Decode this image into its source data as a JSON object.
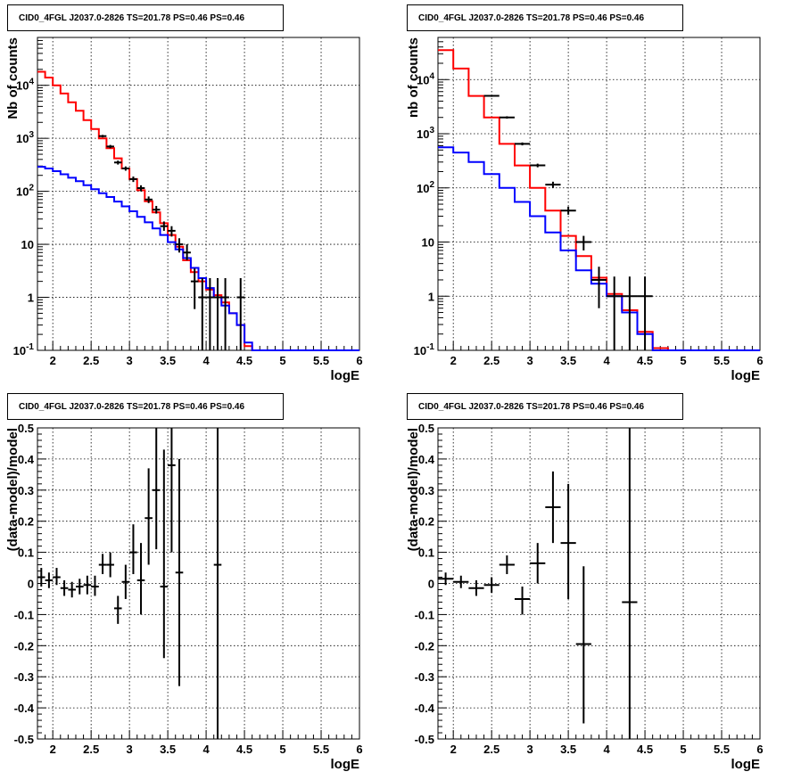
{
  "chart_data": [
    {
      "type": "histogram",
      "title": "CID0_4FGL J2037.0-2826 TS=201.78 PS=0.46 PS=0.46",
      "xlabel": "logE",
      "ylabel": "Nb of counts",
      "xlim": [
        1.8,
        6
      ],
      "ylim": [
        0.1,
        80000
      ],
      "yscale": "log",
      "grid": true,
      "x_ticks": [
        "2",
        "2.5",
        "3",
        "3.5",
        "4",
        "4.5",
        "5",
        "5.5",
        "6"
      ],
      "y_ticks": [
        "10^{-1}",
        "1",
        "10",
        "10^{2}",
        "10^{3}",
        "10^{4}"
      ],
      "bin_edges": [
        1.8,
        1.9,
        2.0,
        2.1,
        2.2,
        2.3,
        2.4,
        2.5,
        2.6,
        2.7,
        2.8,
        2.9,
        3.0,
        3.1,
        3.2,
        3.3,
        3.4,
        3.5,
        3.6,
        3.7,
        3.8,
        3.9,
        4.0,
        4.1,
        4.2,
        4.3,
        4.4,
        4.5,
        4.6,
        4.7,
        4.8,
        4.9,
        5.0,
        5.1,
        5.2,
        5.3,
        5.4,
        5.5,
        5.6,
        5.7,
        5.8,
        5.9,
        6.0
      ],
      "series": [
        {
          "color": "#ff0000",
          "style": "step",
          "values": [
            18000,
            14000,
            10000,
            7000,
            4800,
            3300,
            2200,
            1500,
            1000,
            650,
            420,
            270,
            170,
            105,
            65,
            40,
            25,
            15,
            9,
            5,
            3,
            2,
            1.4,
            1.1,
            0.8,
            0.5,
            0.3,
            0.12,
            0.1,
            0.1,
            0.1,
            0.1,
            0.1,
            0.1,
            0.1,
            0.1,
            0.1,
            0.1,
            0.1,
            0.1,
            0.1,
            0.1
          ]
        },
        {
          "color": "#0000ff",
          "style": "step",
          "values": [
            290,
            270,
            240,
            210,
            180,
            155,
            130,
            110,
            92,
            78,
            64,
            52,
            42,
            33,
            26,
            20,
            15,
            11,
            8,
            5.5,
            3.6,
            2.3,
            1.5,
            1.0,
            0.7,
            0.5,
            0.3,
            0.14,
            0.1,
            0.1,
            0.1,
            0.1,
            0.1,
            0.1,
            0.1,
            0.1,
            0.1,
            0.1,
            0.1,
            0.1,
            0.1,
            0.1
          ]
        },
        {
          "color": "#000000",
          "style": "points",
          "points": [
            {
              "x": 2.65,
              "y": 1100,
              "lo": 1040,
              "hi": 1160
            },
            {
              "x": 2.75,
              "y": 700,
              "lo": 650,
              "hi": 750
            },
            {
              "x": 2.85,
              "y": 350,
              "lo": 320,
              "hi": 380
            },
            {
              "x": 2.95,
              "y": 270,
              "lo": 245,
              "hi": 295
            },
            {
              "x": 3.05,
              "y": 170,
              "lo": 150,
              "hi": 190
            },
            {
              "x": 3.15,
              "y": 115,
              "lo": 100,
              "hi": 130
            },
            {
              "x": 3.25,
              "y": 70,
              "lo": 60,
              "hi": 80
            },
            {
              "x": 3.35,
              "y": 45,
              "lo": 38,
              "hi": 53
            },
            {
              "x": 3.45,
              "y": 22,
              "lo": 18,
              "hi": 27
            },
            {
              "x": 3.55,
              "y": 18,
              "lo": 14,
              "hi": 22
            },
            {
              "x": 3.65,
              "y": 10,
              "lo": 7,
              "hi": 13
            },
            {
              "x": 3.75,
              "y": 7,
              "lo": 5,
              "hi": 10
            },
            {
              "x": 3.85,
              "y": 2,
              "lo": 0.6,
              "hi": 3.5
            },
            {
              "x": 3.95,
              "y": 1,
              "lo": 0.1,
              "hi": 2.3
            },
            {
              "x": 4.05,
              "y": 1,
              "lo": 0.1,
              "hi": 2.3
            },
            {
              "x": 4.15,
              "y": 1,
              "lo": 0.1,
              "hi": 2.3
            },
            {
              "x": 4.25,
              "y": 1,
              "lo": 0.1,
              "hi": 2.3
            },
            {
              "x": 4.45,
              "y": 1,
              "lo": 0.1,
              "hi": 2.3
            }
          ]
        }
      ]
    },
    {
      "type": "histogram",
      "title": "CID0_4FGL J2037.0-2826 TS=201.78 PS=0.46 PS=0.46",
      "xlabel": "logE",
      "ylabel": "nb of counts",
      "xlim": [
        1.8,
        6
      ],
      "ylim": [
        0.1,
        60000
      ],
      "yscale": "log",
      "grid": true,
      "x_ticks": [
        "2",
        "2.5",
        "3",
        "3.5",
        "4",
        "4.5",
        "5",
        "5.5",
        "6"
      ],
      "y_ticks": [
        "10^{-1}",
        "1",
        "10",
        "10^{2}",
        "10^{3}",
        "10^{4}"
      ],
      "bin_edges": [
        1.8,
        2.0,
        2.2,
        2.4,
        2.6,
        2.8,
        3.0,
        3.2,
        3.4,
        3.6,
        3.8,
        4.0,
        4.2,
        4.4,
        4.6,
        4.8,
        5.0,
        5.2,
        5.4,
        5.6,
        5.8,
        6.0
      ],
      "series": [
        {
          "color": "#ff0000",
          "style": "step",
          "values": [
            35000,
            16000,
            5000,
            2000,
            650,
            260,
            100,
            38,
            13,
            5.5,
            2.2,
            1.1,
            0.55,
            0.22,
            0.11,
            0.1,
            0.1,
            0.1,
            0.1,
            0.1,
            0.1
          ]
        },
        {
          "color": "#0000ff",
          "style": "step",
          "values": [
            560,
            450,
            300,
            180,
            100,
            55,
            30,
            15,
            7,
            3,
            1.7,
            1,
            0.5,
            0.2,
            0.1,
            0.1,
            0.1,
            0.1,
            0.1,
            0.1,
            0.1
          ]
        },
        {
          "color": "#000000",
          "style": "points",
          "points": [
            {
              "x": 2.5,
              "y": 5000,
              "lo": 4800,
              "hi": 5200
            },
            {
              "x": 2.7,
              "y": 2000,
              "lo": 1900,
              "hi": 2100
            },
            {
              "x": 2.9,
              "y": 650,
              "lo": 610,
              "hi": 690
            },
            {
              "x": 3.1,
              "y": 260,
              "lo": 240,
              "hi": 280
            },
            {
              "x": 3.3,
              "y": 115,
              "lo": 100,
              "hi": 130
            },
            {
              "x": 3.5,
              "y": 38,
              "lo": 32,
              "hi": 45
            },
            {
              "x": 3.7,
              "y": 10,
              "lo": 7,
              "hi": 13
            },
            {
              "x": 3.9,
              "y": 2,
              "lo": 0.6,
              "hi": 3.5
            },
            {
              "x": 4.1,
              "y": 1,
              "lo": 0.1,
              "hi": 2.3
            },
            {
              "x": 4.3,
              "y": 1,
              "lo": 0.1,
              "hi": 2.3
            },
            {
              "x": 4.5,
              "y": 1,
              "lo": 0.1,
              "hi": 2.3
            }
          ]
        }
      ]
    },
    {
      "type": "scatter",
      "title": "CID0_4FGL J2037.0-2826 TS=201.78 PS=0.46 PS=0.46",
      "xlabel": "logE",
      "ylabel": "(data-model)/model",
      "xlim": [
        1.8,
        6
      ],
      "ylim": [
        -0.5,
        0.5
      ],
      "grid": true,
      "x_ticks": [
        "2",
        "2.5",
        "3",
        "3.5",
        "4",
        "4.5",
        "5",
        "5.5",
        "6"
      ],
      "y_ticks": [
        "-0.5",
        "-0.4",
        "-0.3",
        "-0.2",
        "-0.1",
        "0",
        "0.1",
        "0.2",
        "0.3",
        "0.4",
        "0.5"
      ],
      "series": [
        {
          "color": "#000000",
          "style": "points",
          "xerr": 0.05,
          "points": [
            {
              "x": 1.85,
              "y": 0.02,
              "lo": -0.01,
              "hi": 0.05
            },
            {
              "x": 1.95,
              "y": 0.01,
              "lo": -0.015,
              "hi": 0.035
            },
            {
              "x": 2.05,
              "y": 0.02,
              "lo": -0.005,
              "hi": 0.05
            },
            {
              "x": 2.15,
              "y": -0.015,
              "lo": -0.04,
              "hi": 0.01
            },
            {
              "x": 2.25,
              "y": -0.02,
              "lo": -0.045,
              "hi": 0.005
            },
            {
              "x": 2.35,
              "y": -0.01,
              "lo": -0.035,
              "hi": 0.015
            },
            {
              "x": 2.45,
              "y": -0.005,
              "lo": -0.035,
              "hi": 0.025
            },
            {
              "x": 2.55,
              "y": -0.01,
              "lo": -0.04,
              "hi": 0.025
            },
            {
              "x": 2.65,
              "y": 0.06,
              "lo": 0.03,
              "hi": 0.095
            },
            {
              "x": 2.75,
              "y": 0.06,
              "lo": 0.02,
              "hi": 0.1
            },
            {
              "x": 2.85,
              "y": -0.08,
              "lo": -0.13,
              "hi": -0.04
            },
            {
              "x": 2.95,
              "y": 0.005,
              "lo": -0.05,
              "hi": 0.06
            },
            {
              "x": 3.05,
              "y": 0.1,
              "lo": 0.03,
              "hi": 0.19
            },
            {
              "x": 3.15,
              "y": 0.01,
              "lo": -0.1,
              "hi": 0.13
            },
            {
              "x": 3.25,
              "y": 0.21,
              "lo": 0.06,
              "hi": 0.37
            },
            {
              "x": 3.35,
              "y": 0.3,
              "lo": 0.11,
              "hi": 0.5
            },
            {
              "x": 3.45,
              "y": -0.01,
              "lo": -0.24,
              "hi": 0.43
            },
            {
              "x": 3.55,
              "y": 0.38,
              "lo": 0.1,
              "hi": 0.5
            },
            {
              "x": 3.65,
              "y": 0.035,
              "lo": -0.33,
              "hi": 0.4
            },
            {
              "x": 4.15,
              "y": 0.06,
              "lo": -0.5,
              "hi": 0.5
            }
          ]
        }
      ]
    },
    {
      "type": "scatter",
      "title": "CID0_4FGL J2037.0-2826 TS=201.78 PS=0.46 PS=0.46",
      "xlabel": "logE",
      "ylabel": "(data-model)/model",
      "xlim": [
        1.8,
        6
      ],
      "ylim": [
        -0.5,
        0.5
      ],
      "grid": true,
      "x_ticks": [
        "2",
        "2.5",
        "3",
        "3.5",
        "4",
        "4.5",
        "5",
        "5.5",
        "6"
      ],
      "y_ticks": [
        "-0.5",
        "-0.4",
        "-0.3",
        "-0.2",
        "-0.1",
        "0",
        "0.1",
        "0.2",
        "0.3",
        "0.4",
        "0.5"
      ],
      "series": [
        {
          "color": "#000000",
          "style": "points",
          "xerr": 0.1,
          "points": [
            {
              "x": 1.9,
              "y": 0.015,
              "lo": -0.005,
              "hi": 0.035
            },
            {
              "x": 2.1,
              "y": 0.005,
              "lo": -0.015,
              "hi": 0.025
            },
            {
              "x": 2.3,
              "y": -0.015,
              "lo": -0.04,
              "hi": 0.01
            },
            {
              "x": 2.5,
              "y": -0.005,
              "lo": -0.03,
              "hi": 0.02
            },
            {
              "x": 2.7,
              "y": 0.06,
              "lo": 0.03,
              "hi": 0.09
            },
            {
              "x": 2.9,
              "y": -0.05,
              "lo": -0.1,
              "hi": -0.01
            },
            {
              "x": 3.1,
              "y": 0.065,
              "lo": 0.0,
              "hi": 0.13
            },
            {
              "x": 3.3,
              "y": 0.245,
              "lo": 0.13,
              "hi": 0.36
            },
            {
              "x": 3.5,
              "y": 0.13,
              "lo": -0.05,
              "hi": 0.32
            },
            {
              "x": 3.7,
              "y": -0.195,
              "lo": -0.45,
              "hi": 0.055
            },
            {
              "x": 4.3,
              "y": -0.06,
              "lo": -0.5,
              "hi": 0.5
            }
          ]
        }
      ]
    }
  ]
}
